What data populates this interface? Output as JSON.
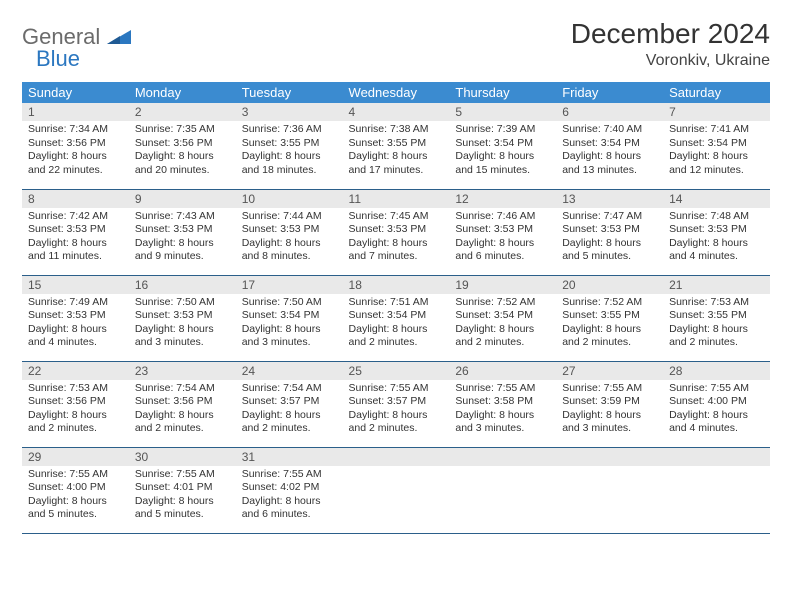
{
  "brand": {
    "name": "General",
    "sub": "Blue"
  },
  "title": "December 2024",
  "location": "Voronkiv, Ukraine",
  "colors": {
    "header_bg": "#3b8bd0",
    "header_text": "#ffffff",
    "daynum_bg": "#e9e9e9",
    "border": "#2b5f8a",
    "logo_gray": "#6b6b6b",
    "logo_blue": "#2b77c0"
  },
  "columns": [
    "Sunday",
    "Monday",
    "Tuesday",
    "Wednesday",
    "Thursday",
    "Friday",
    "Saturday"
  ],
  "weeks": [
    [
      {
        "n": "1",
        "sr": "7:34 AM",
        "ss": "3:56 PM",
        "dl": "8 hours and 22 minutes."
      },
      {
        "n": "2",
        "sr": "7:35 AM",
        "ss": "3:56 PM",
        "dl": "8 hours and 20 minutes."
      },
      {
        "n": "3",
        "sr": "7:36 AM",
        "ss": "3:55 PM",
        "dl": "8 hours and 18 minutes."
      },
      {
        "n": "4",
        "sr": "7:38 AM",
        "ss": "3:55 PM",
        "dl": "8 hours and 17 minutes."
      },
      {
        "n": "5",
        "sr": "7:39 AM",
        "ss": "3:54 PM",
        "dl": "8 hours and 15 minutes."
      },
      {
        "n": "6",
        "sr": "7:40 AM",
        "ss": "3:54 PM",
        "dl": "8 hours and 13 minutes."
      },
      {
        "n": "7",
        "sr": "7:41 AM",
        "ss": "3:54 PM",
        "dl": "8 hours and 12 minutes."
      }
    ],
    [
      {
        "n": "8",
        "sr": "7:42 AM",
        "ss": "3:53 PM",
        "dl": "8 hours and 11 minutes."
      },
      {
        "n": "9",
        "sr": "7:43 AM",
        "ss": "3:53 PM",
        "dl": "8 hours and 9 minutes."
      },
      {
        "n": "10",
        "sr": "7:44 AM",
        "ss": "3:53 PM",
        "dl": "8 hours and 8 minutes."
      },
      {
        "n": "11",
        "sr": "7:45 AM",
        "ss": "3:53 PM",
        "dl": "8 hours and 7 minutes."
      },
      {
        "n": "12",
        "sr": "7:46 AM",
        "ss": "3:53 PM",
        "dl": "8 hours and 6 minutes."
      },
      {
        "n": "13",
        "sr": "7:47 AM",
        "ss": "3:53 PM",
        "dl": "8 hours and 5 minutes."
      },
      {
        "n": "14",
        "sr": "7:48 AM",
        "ss": "3:53 PM",
        "dl": "8 hours and 4 minutes."
      }
    ],
    [
      {
        "n": "15",
        "sr": "7:49 AM",
        "ss": "3:53 PM",
        "dl": "8 hours and 4 minutes."
      },
      {
        "n": "16",
        "sr": "7:50 AM",
        "ss": "3:53 PM",
        "dl": "8 hours and 3 minutes."
      },
      {
        "n": "17",
        "sr": "7:50 AM",
        "ss": "3:54 PM",
        "dl": "8 hours and 3 minutes."
      },
      {
        "n": "18",
        "sr": "7:51 AM",
        "ss": "3:54 PM",
        "dl": "8 hours and 2 minutes."
      },
      {
        "n": "19",
        "sr": "7:52 AM",
        "ss": "3:54 PM",
        "dl": "8 hours and 2 minutes."
      },
      {
        "n": "20",
        "sr": "7:52 AM",
        "ss": "3:55 PM",
        "dl": "8 hours and 2 minutes."
      },
      {
        "n": "21",
        "sr": "7:53 AM",
        "ss": "3:55 PM",
        "dl": "8 hours and 2 minutes."
      }
    ],
    [
      {
        "n": "22",
        "sr": "7:53 AM",
        "ss": "3:56 PM",
        "dl": "8 hours and 2 minutes."
      },
      {
        "n": "23",
        "sr": "7:54 AM",
        "ss": "3:56 PM",
        "dl": "8 hours and 2 minutes."
      },
      {
        "n": "24",
        "sr": "7:54 AM",
        "ss": "3:57 PM",
        "dl": "8 hours and 2 minutes."
      },
      {
        "n": "25",
        "sr": "7:55 AM",
        "ss": "3:57 PM",
        "dl": "8 hours and 2 minutes."
      },
      {
        "n": "26",
        "sr": "7:55 AM",
        "ss": "3:58 PM",
        "dl": "8 hours and 3 minutes."
      },
      {
        "n": "27",
        "sr": "7:55 AM",
        "ss": "3:59 PM",
        "dl": "8 hours and 3 minutes."
      },
      {
        "n": "28",
        "sr": "7:55 AM",
        "ss": "4:00 PM",
        "dl": "8 hours and 4 minutes."
      }
    ],
    [
      {
        "n": "29",
        "sr": "7:55 AM",
        "ss": "4:00 PM",
        "dl": "8 hours and 5 minutes."
      },
      {
        "n": "30",
        "sr": "7:55 AM",
        "ss": "4:01 PM",
        "dl": "8 hours and 5 minutes."
      },
      {
        "n": "31",
        "sr": "7:55 AM",
        "ss": "4:02 PM",
        "dl": "8 hours and 6 minutes."
      },
      null,
      null,
      null,
      null
    ]
  ],
  "labels": {
    "sunrise": "Sunrise:",
    "sunset": "Sunset:",
    "daylight": "Daylight:"
  }
}
